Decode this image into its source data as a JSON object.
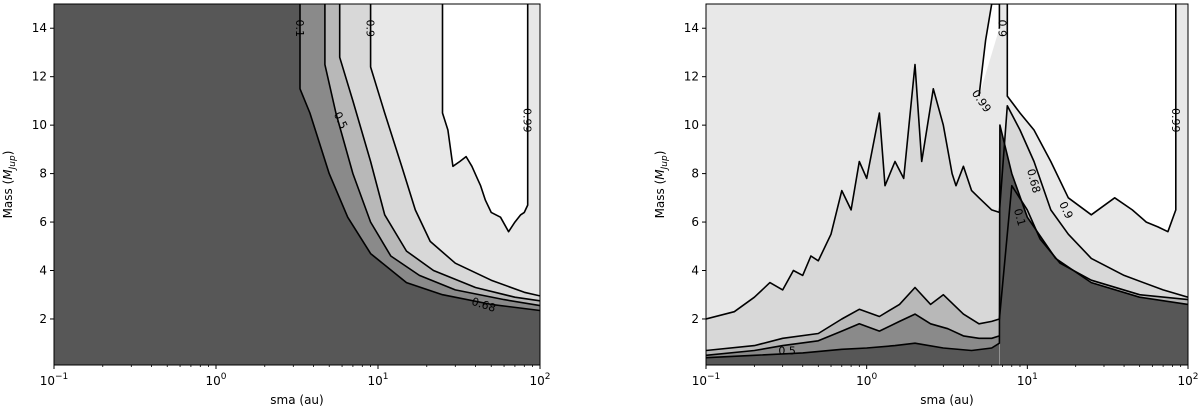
{
  "colors": {
    "level_0": "#575757",
    "level_1": "#8a8a8a",
    "level_2": "#b8b8b8",
    "level_3": "#d8d8d8",
    "level_4": "#e8e8e8",
    "level_5": "#ffffff",
    "contour_line": "#000000"
  },
  "chart_data": [
    {
      "type": "contour",
      "xlabel": "sma (au)",
      "ylabel_main": "Mass (",
      "ylabel_sub": "Jup",
      "ylabel_end": ")",
      "xscale": "log",
      "xlim": [
        0.1,
        100
      ],
      "ylim": [
        0.1,
        15
      ],
      "xticks": [
        {
          "value": 0.1,
          "base": "10",
          "exp": "−1"
        },
        {
          "value": 1,
          "base": "10",
          "exp": "0"
        },
        {
          "value": 10,
          "base": "10",
          "exp": "1"
        },
        {
          "value": 100,
          "base": "10",
          "exp": "2"
        }
      ],
      "yticks": [
        "2",
        "4",
        "6",
        "8",
        "10",
        "12",
        "14"
      ],
      "contour_levels": [
        0.1,
        0.5,
        0.68,
        0.9,
        0.99
      ],
      "contours": [
        {
          "level": 0.1,
          "points": [
            [
              3.3,
              15
            ],
            [
              3.3,
              11.5
            ],
            [
              3.8,
              10.5
            ],
            [
              5.0,
              8.0
            ],
            [
              6.5,
              6.2
            ],
            [
              9,
              4.7
            ],
            [
              15,
              3.5
            ],
            [
              25,
              3.0
            ],
            [
              50,
              2.6
            ],
            [
              100,
              2.35
            ]
          ]
        },
        {
          "level": 0.5,
          "points": [
            [
              4.7,
              15
            ],
            [
              4.7,
              12.5
            ],
            [
              5.5,
              10.5
            ],
            [
              7.0,
              8.0
            ],
            [
              9,
              6.0
            ],
            [
              12,
              4.6
            ],
            [
              18,
              3.8
            ],
            [
              30,
              3.2
            ],
            [
              60,
              2.8
            ],
            [
              100,
              2.55
            ]
          ]
        },
        {
          "level": 0.68,
          "points": [
            [
              5.8,
              15
            ],
            [
              5.8,
              12.8
            ],
            [
              7.0,
              11.0
            ],
            [
              9,
              8.5
            ],
            [
              11,
              6.3
            ],
            [
              15,
              4.8
            ],
            [
              22,
              4.0
            ],
            [
              40,
              3.3
            ],
            [
              70,
              2.9
            ],
            [
              100,
              2.75
            ]
          ]
        },
        {
          "level": 0.9,
          "points": [
            [
              9.0,
              15
            ],
            [
              9.0,
              12.4
            ],
            [
              11,
              10.5
            ],
            [
              14,
              8.3
            ],
            [
              17,
              6.5
            ],
            [
              21,
              5.2
            ],
            [
              30,
              4.3
            ],
            [
              50,
              3.6
            ],
            [
              80,
              3.1
            ],
            [
              100,
              2.95
            ]
          ]
        },
        {
          "level": 0.99,
          "points": [
            [
              25,
              15
            ],
            [
              25,
              10.5
            ],
            [
              27,
              9.8
            ],
            [
              29,
              8.3
            ],
            [
              32,
              8.5
            ],
            [
              35,
              8.7
            ],
            [
              38,
              8.3
            ],
            [
              41,
              7.8
            ],
            [
              43,
              7.5
            ],
            [
              46,
              6.9
            ],
            [
              50,
              6.4
            ],
            [
              57,
              6.2
            ],
            [
              64,
              5.6
            ],
            [
              70,
              6.0
            ],
            [
              76,
              6.3
            ],
            [
              80,
              6.4
            ],
            [
              84,
              6.7
            ],
            [
              84,
              15
            ]
          ]
        }
      ],
      "labels": [
        {
          "text": "0.1",
          "x": 3.3,
          "y": 14.0,
          "rotation": 90
        },
        {
          "text": "0.9",
          "x": 9.0,
          "y": 14.0,
          "rotation": 90
        },
        {
          "text": "0.99",
          "x": 84,
          "y": 10.2,
          "rotation": 90
        },
        {
          "text": "0.5",
          "x": 5.9,
          "y": 10.2,
          "rotation": 65
        },
        {
          "text": "0.68",
          "x": 45,
          "y": 2.6,
          "rotation": 18
        }
      ]
    },
    {
      "type": "contour",
      "xlabel": "sma (au)",
      "ylabel_main": "Mass (",
      "ylabel_sub": "Jup",
      "ylabel_end": ")",
      "xscale": "log",
      "xlim": [
        0.1,
        100
      ],
      "ylim": [
        0.1,
        15
      ],
      "xticks": [
        {
          "value": 0.1,
          "base": "10",
          "exp": "−1"
        },
        {
          "value": 1,
          "base": "10",
          "exp": "0"
        },
        {
          "value": 10,
          "base": "10",
          "exp": "1"
        },
        {
          "value": 100,
          "base": "10",
          "exp": "2"
        }
      ],
      "yticks": [
        "2",
        "4",
        "6",
        "8",
        "10",
        "12",
        "14"
      ],
      "contour_levels": [
        0.1,
        0.5,
        0.68,
        0.9,
        0.99
      ],
      "contours": [
        {
          "level": 0.1,
          "points": [
            [
              0.1,
              0.4
            ],
            [
              0.2,
              0.5
            ],
            [
              0.4,
              0.6
            ],
            [
              0.7,
              0.75
            ],
            [
              1.0,
              0.8
            ],
            [
              1.5,
              0.9
            ],
            [
              2.0,
              1.0
            ],
            [
              3.0,
              0.8
            ],
            [
              4.5,
              0.7
            ],
            [
              6.0,
              0.8
            ],
            [
              6.7,
              1.0
            ],
            [
              6.75,
              10.0
            ],
            [
              8,
              8.0
            ],
            [
              10,
              6.2
            ],
            [
              15,
              4.5
            ],
            [
              25,
              3.5
            ],
            [
              50,
              2.9
            ],
            [
              100,
              2.6
            ]
          ]
        },
        {
          "level": 0.5,
          "points": [
            [
              0.1,
              0.5
            ],
            [
              0.2,
              0.7
            ],
            [
              0.3,
              0.9
            ],
            [
              0.5,
              1.1
            ],
            [
              0.7,
              1.5
            ],
            [
              0.9,
              1.8
            ],
            [
              1.2,
              1.5
            ],
            [
              1.6,
              1.9
            ],
            [
              2.0,
              2.2
            ],
            [
              2.5,
              1.8
            ],
            [
              3.2,
              1.6
            ],
            [
              4.0,
              1.3
            ],
            [
              5.0,
              1.2
            ],
            [
              6.0,
              1.2
            ],
            [
              6.7,
              1.3
            ]
          ]
        },
        {
          "level": 0.68,
          "points": [
            [
              0.1,
              0.7
            ],
            [
              0.2,
              0.9
            ],
            [
              0.3,
              1.2
            ],
            [
              0.5,
              1.4
            ],
            [
              0.7,
              2.0
            ],
            [
              0.9,
              2.4
            ],
            [
              1.2,
              2.1
            ],
            [
              1.6,
              2.6
            ],
            [
              2.0,
              3.3
            ],
            [
              2.5,
              2.6
            ],
            [
              3.0,
              3.0
            ],
            [
              4.0,
              2.2
            ],
            [
              5.0,
              1.8
            ],
            [
              6.0,
              1.9
            ],
            [
              6.7,
              2.0
            ],
            [
              8,
              7.5
            ],
            [
              10,
              6.5
            ],
            [
              12,
              5.3
            ],
            [
              16,
              4.3
            ],
            [
              25,
              3.6
            ],
            [
              50,
              3.0
            ],
            [
              100,
              2.8
            ]
          ]
        },
        {
          "level": 0.9,
          "points": [
            [
              0.1,
              2.0
            ],
            [
              0.15,
              2.3
            ],
            [
              0.2,
              2.9
            ],
            [
              0.25,
              3.5
            ],
            [
              0.3,
              3.2
            ],
            [
              0.35,
              4.0
            ],
            [
              0.4,
              3.8
            ],
            [
              0.45,
              4.6
            ],
            [
              0.5,
              4.4
            ],
            [
              0.6,
              5.5
            ],
            [
              0.7,
              7.3
            ],
            [
              0.8,
              6.5
            ],
            [
              0.9,
              8.5
            ],
            [
              1.0,
              7.8
            ],
            [
              1.2,
              10.5
            ],
            [
              1.3,
              7.5
            ],
            [
              1.5,
              8.5
            ],
            [
              1.7,
              7.8
            ],
            [
              2.0,
              12.5
            ],
            [
              2.2,
              8.5
            ],
            [
              2.6,
              11.5
            ],
            [
              3.0,
              10.0
            ],
            [
              3.4,
              8.0
            ],
            [
              3.6,
              7.5
            ],
            [
              4.0,
              8.3
            ],
            [
              4.5,
              7.3
            ],
            [
              5.0,
              7.0
            ],
            [
              6.0,
              6.5
            ],
            [
              6.7,
              6.4
            ],
            [
              7.5,
              10.8
            ],
            [
              9,
              9.8
            ],
            [
              11,
              8.5
            ],
            [
              14,
              6.5
            ],
            [
              18,
              5.5
            ],
            [
              25,
              4.5
            ],
            [
              40,
              3.8
            ],
            [
              70,
              3.2
            ],
            [
              100,
              2.9
            ]
          ]
        },
        {
          "level": 0.99,
          "points": [
            [
              5.0,
              11.2
            ],
            [
              5.5,
              13.5
            ],
            [
              6.0,
              15
            ],
            [
              6.7,
              15
            ],
            [
              6.7,
              14.0
            ]
          ]
        },
        {
          "level": 0.99,
          "points": [
            [
              7.5,
              15
            ],
            [
              7.5,
              11.2
            ],
            [
              9,
              10.5
            ],
            [
              11,
              9.8
            ],
            [
              14,
              8.5
            ],
            [
              18,
              7.0
            ],
            [
              25,
              6.3
            ],
            [
              35,
              7.0
            ],
            [
              45,
              6.5
            ],
            [
              55,
              6.0
            ],
            [
              65,
              5.8
            ],
            [
              75,
              5.6
            ],
            [
              84,
              6.5
            ],
            [
              84,
              15
            ]
          ]
        }
      ],
      "labels": [
        {
          "text": "0.9",
          "x": 7.0,
          "y": 14.0,
          "rotation": 90
        },
        {
          "text": "0.99",
          "x": 5.2,
          "y": 11.0,
          "rotation": 55
        },
        {
          "text": "0.99",
          "x": 84,
          "y": 10.2,
          "rotation": 90
        },
        {
          "text": "0.68",
          "x": 11,
          "y": 7.7,
          "rotation": 75
        },
        {
          "text": "0.9",
          "x": 17.5,
          "y": 6.5,
          "rotation": 65
        },
        {
          "text": "0.1",
          "x": 9.0,
          "y": 6.2,
          "rotation": 75
        },
        {
          "text": "0.5",
          "x": 0.32,
          "y": 0.7,
          "rotation": 0
        }
      ]
    }
  ]
}
